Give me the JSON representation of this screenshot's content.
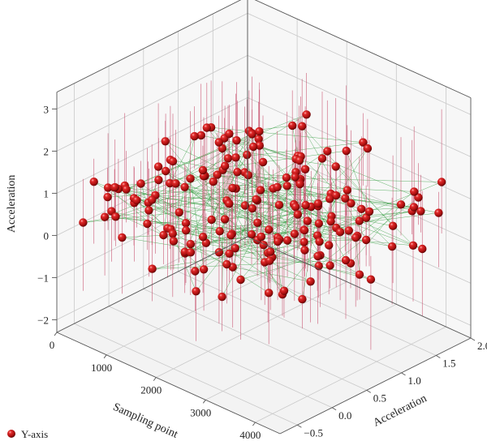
{
  "chart_data": {
    "type": "scatter3d",
    "axes": {
      "x": {
        "label": "Sampling point",
        "range": [
          0,
          4500
        ],
        "ticks": [
          0,
          1000,
          2000,
          3000,
          4000
        ]
      },
      "y": {
        "label": "Acceleration",
        "range": [
          -0.75,
          2.0
        ],
        "ticks": [
          -0.5,
          0.0,
          0.5,
          1.0,
          1.5,
          2.0
        ],
        "tick_labels": [
          "−0.5",
          "0.0",
          "0.5",
          "1.0",
          "1.5",
          "2.0"
        ]
      },
      "z": {
        "label": "Acceleration",
        "range": [
          -2.3,
          3.4
        ],
        "ticks": [
          -2,
          -1,
          0,
          1,
          2,
          3
        ],
        "tick_labels": [
          "−2",
          "−1",
          "0",
          "1",
          "2",
          "3"
        ]
      }
    },
    "grid": true,
    "legend": {
      "position": "bottom-left",
      "entries": [
        {
          "name": "Y-axis",
          "color": "#c81414"
        }
      ]
    },
    "series": [
      {
        "name": "Y-axis",
        "color": "#c81414",
        "marker": "sphere",
        "drop_line_color": "#c8506e",
        "connector_color": "#2e9a3a",
        "point_count": 200,
        "point_distribution": "approximately uniform in x (0–4500) and y (−0.7–1.9); z roughly normal around 0.8, spanning about −0.7 to 2.0"
      }
    ]
  },
  "legend_label": "Y-axis"
}
